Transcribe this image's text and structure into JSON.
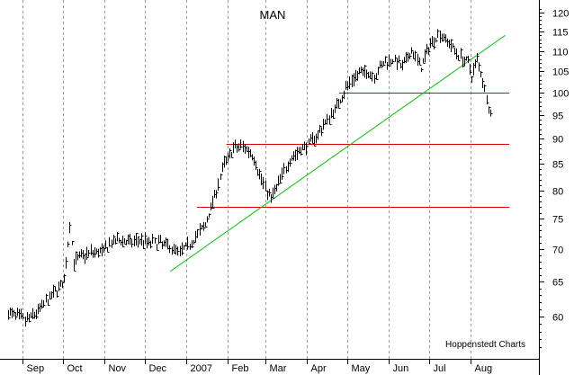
{
  "chart_data": {
    "type": "line",
    "title": "MAN",
    "credit": "Hoppenstedt Charts",
    "x_labels": [
      "Sep",
      "Oct",
      "Nov",
      "Dec",
      "2007",
      "Feb",
      "Mar",
      "Apr",
      "May",
      "Jun",
      "Jul",
      "Aug"
    ],
    "y_ticks": [
      60,
      65,
      70,
      75,
      80,
      85,
      90,
      95,
      100,
      105,
      110,
      115,
      120
    ],
    "y_scale": "log",
    "ylim": [
      55,
      122
    ],
    "grid": "vertical dotted at month starts",
    "series": [
      {
        "style": "high-low-close bars",
        "color": "#000000",
        "points": [
          [
            "Aug 21",
            60.5
          ],
          [
            "Aug 28",
            60.0
          ],
          [
            "Sep 4",
            59.5
          ],
          [
            "Sep 11",
            60.5
          ],
          [
            "Sep 18",
            62.0
          ],
          [
            "Sep 25",
            63.5
          ],
          [
            "Oct 2",
            65.0
          ],
          [
            "Oct 6",
            74.0
          ],
          [
            "Oct 9",
            68.0
          ],
          [
            "Oct 16",
            69.0
          ],
          [
            "Oct 23",
            69.5
          ],
          [
            "Oct 30",
            69.5
          ],
          [
            "Nov 6",
            71.0
          ],
          [
            "Nov 13",
            71.5
          ],
          [
            "Nov 20",
            71.0
          ],
          [
            "Nov 27",
            71.5
          ],
          [
            "Dec 4",
            71.0
          ],
          [
            "Dec 11",
            71.0
          ],
          [
            "Dec 18",
            70.5
          ],
          [
            "Dec 27",
            69.5
          ],
          [
            "Jan 2",
            70.5
          ],
          [
            "Jan 8",
            72.0
          ],
          [
            "Jan 15",
            74.0
          ],
          [
            "Jan 22",
            79.0
          ],
          [
            "Jan 29",
            85.0
          ],
          [
            "Feb 5",
            88.0
          ],
          [
            "Feb 12",
            88.5
          ],
          [
            "Feb 19",
            87.0
          ],
          [
            "Feb 26",
            82.0
          ],
          [
            "Mar 5",
            78.5
          ],
          [
            "Mar 12",
            82.0
          ],
          [
            "Mar 19",
            86.0
          ],
          [
            "Mar 26",
            87.5
          ],
          [
            "Apr 2",
            89.0
          ],
          [
            "Apr 9",
            91.0
          ],
          [
            "Apr 16",
            94.0
          ],
          [
            "Apr 23",
            97.0
          ],
          [
            "Apr 30",
            101.0
          ],
          [
            "May 7",
            104.0
          ],
          [
            "May 14",
            105.0
          ],
          [
            "May 21",
            104.0
          ],
          [
            "May 28",
            107.0
          ],
          [
            "Jun 4",
            108.0
          ],
          [
            "Jun 11",
            106.0
          ],
          [
            "Jun 18",
            110.0
          ],
          [
            "Jun 25",
            106.0
          ],
          [
            "Jul 2",
            112.0
          ],
          [
            "Jul 9",
            114.5
          ],
          [
            "Jul 16",
            112.0
          ],
          [
            "Jul 23",
            109.0
          ],
          [
            "Jul 30",
            107.0
          ],
          [
            "Aug 2",
            104.0
          ],
          [
            "Aug 6",
            108.0
          ],
          [
            "Aug 10",
            103.0
          ],
          [
            "Aug 13",
            99.0
          ],
          [
            "Aug 16",
            95.0
          ],
          [
            "Aug 17",
            98.0
          ]
        ]
      }
    ],
    "trendline": {
      "color": "#00cc00",
      "from": [
        "Dec 20",
        66.5
      ],
      "to": [
        "Aug 27",
        114.0
      ]
    },
    "horizontal_lines": [
      {
        "value": 100.0,
        "color": "#dd0000",
        "start": "Apr 25",
        "end": "Aug 30"
      },
      {
        "value": 89.0,
        "color": "#dd0000",
        "start": "Jan 31",
        "end": "Aug 30"
      },
      {
        "value": 77.0,
        "color": "#dd0000",
        "start": "Jan 9",
        "end": "Aug 30"
      }
    ]
  }
}
